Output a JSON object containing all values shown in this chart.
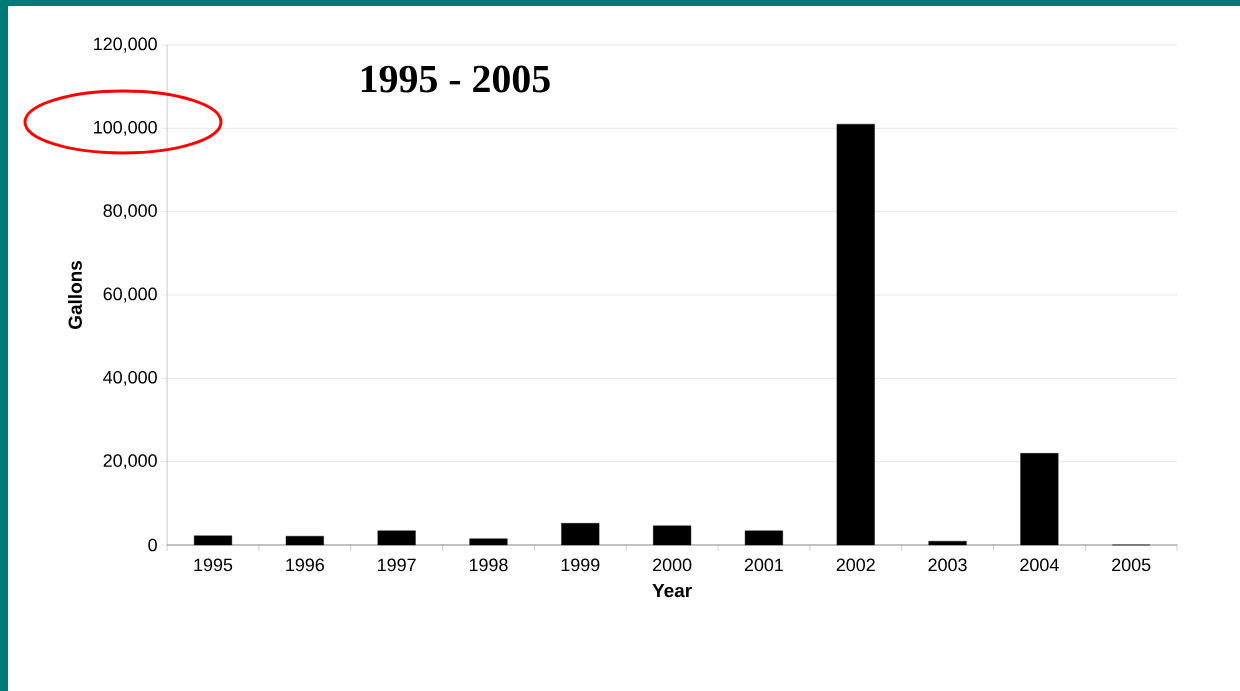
{
  "chart_data": {
    "type": "bar",
    "title": "1995 - 2005",
    "xlabel": "Year",
    "ylabel": "Gallons",
    "categories": [
      "1995",
      "1996",
      "1997",
      "1998",
      "1999",
      "2000",
      "2001",
      "2002",
      "2003",
      "2004",
      "2005"
    ],
    "values": [
      2200,
      2100,
      3400,
      1500,
      5200,
      4600,
      3400,
      101000,
      900,
      22000,
      0
    ],
    "color": "#000000",
    "ylim": [
      0,
      120000
    ],
    "yticks": [
      {
        "value": 0,
        "label": "0"
      },
      {
        "value": 20000,
        "label": "20,000"
      },
      {
        "value": 40000,
        "label": "40,000"
      },
      {
        "value": 60000,
        "label": "60,000"
      },
      {
        "value": 80000,
        "label": "80,000"
      },
      {
        "value": 100000,
        "label": "100,000"
      },
      {
        "value": 120000,
        "label": "120,000"
      }
    ],
    "grid": "y"
  }
}
